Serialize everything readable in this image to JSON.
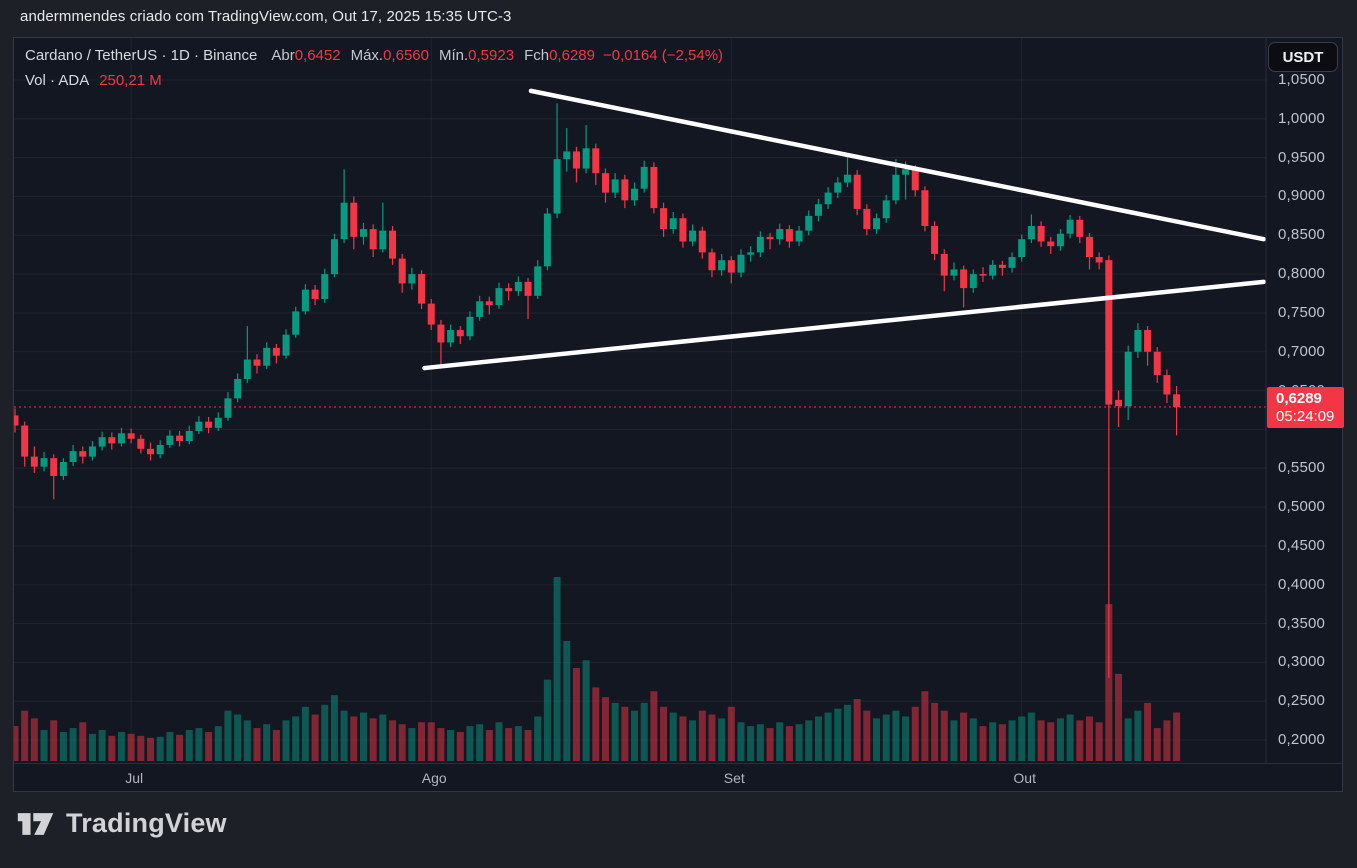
{
  "header": {
    "attribution": "andermmendes criado com TradingView.com, Out 17, 2025 15:35 UTC-3"
  },
  "legend": {
    "title": "Cardano / TetherUS · 1D · Binance",
    "open_label": "Abr",
    "open": "0,6452",
    "high_label": "Máx.",
    "high": "0,6560",
    "low_label": "Mín.",
    "low": "0,5923",
    "close_label": "Fch",
    "close": "0,6289",
    "change": "−0,0164 (−2,54%)",
    "volume_label": "Vol · ADA",
    "volume": "250,21 M"
  },
  "price_axis": {
    "currency_button": "USDT",
    "last_price": "0,6289",
    "countdown": "05:24:09"
  },
  "footer": {
    "brand": "TradingView"
  },
  "colors": {
    "up": "#089981",
    "down": "#f23645",
    "accent": "#f23645",
    "background": "#131722",
    "grid": "rgba(255,255,255,0.055)",
    "trendline": "#ffffff",
    "axis_text": "#bfc3ce"
  },
  "chart_data": {
    "type": "candlestick+volume",
    "title": "Cardano / TetherUS · 1D · Binance",
    "price_range_shown": [
      0.2,
      1.05
    ],
    "grid": true,
    "y_ticks": [
      {
        "label": "1,0500",
        "price": 1.05
      },
      {
        "label": "1,0000",
        "price": 1.0
      },
      {
        "label": "0,9500",
        "price": 0.95
      },
      {
        "label": "0,9000",
        "price": 0.9
      },
      {
        "label": "0,8500",
        "price": 0.85
      },
      {
        "label": "0,8000",
        "price": 0.8
      },
      {
        "label": "0,7500",
        "price": 0.75
      },
      {
        "label": "0,7000",
        "price": 0.7
      },
      {
        "label": "0,6500",
        "price": 0.65
      },
      {
        "label": null,
        "price": 0.6
      },
      {
        "label": "0,5500",
        "price": 0.55
      },
      {
        "label": "0,5000",
        "price": 0.5
      },
      {
        "label": "0,4500",
        "price": 0.45
      },
      {
        "label": "0,4000",
        "price": 0.4
      },
      {
        "label": "0,3500",
        "price": 0.35
      },
      {
        "label": "0,3000",
        "price": 0.3
      },
      {
        "label": "0,2500",
        "price": 0.25
      },
      {
        "label": "0,2000",
        "price": 0.2
      }
    ],
    "x_ticks": [
      {
        "label": "Jul",
        "index": 12
      },
      {
        "label": "Ago",
        "index": 43
      },
      {
        "label": "Set",
        "index": 74
      },
      {
        "label": "Out",
        "index": 104
      }
    ],
    "last_price": 0.6289,
    "volume_max_scale": 950,
    "trendlines": [
      {
        "name": "descending-resistance",
        "i1": 53.3,
        "p1": 1.036,
        "i2": 129.0,
        "p2": 0.845
      },
      {
        "name": "ascending-support",
        "i1": 42.3,
        "p1": 0.679,
        "i2": 129.0,
        "p2": 0.79
      }
    ],
    "candles_format": [
      "open",
      "high",
      "low",
      "close",
      "volume_M"
    ],
    "candles": [
      [
        0.618,
        0.627,
        0.596,
        0.605,
        180
      ],
      [
        0.605,
        0.61,
        0.552,
        0.565,
        260
      ],
      [
        0.565,
        0.578,
        0.544,
        0.552,
        220
      ],
      [
        0.552,
        0.571,
        0.546,
        0.563,
        160
      ],
      [
        0.563,
        0.568,
        0.51,
        0.54,
        210
      ],
      [
        0.54,
        0.563,
        0.535,
        0.558,
        150
      ],
      [
        0.558,
        0.58,
        0.553,
        0.572,
        170
      ],
      [
        0.572,
        0.578,
        0.556,
        0.565,
        200
      ],
      [
        0.565,
        0.585,
        0.56,
        0.578,
        140
      ],
      [
        0.578,
        0.597,
        0.573,
        0.59,
        160
      ],
      [
        0.59,
        0.596,
        0.574,
        0.582,
        130
      ],
      [
        0.582,
        0.602,
        0.578,
        0.595,
        150
      ],
      [
        0.595,
        0.601,
        0.582,
        0.588,
        140
      ],
      [
        0.588,
        0.593,
        0.569,
        0.575,
        130
      ],
      [
        0.575,
        0.583,
        0.56,
        0.568,
        120
      ],
      [
        0.568,
        0.586,
        0.563,
        0.58,
        125
      ],
      [
        0.58,
        0.599,
        0.576,
        0.592,
        150
      ],
      [
        0.592,
        0.598,
        0.578,
        0.585,
        135
      ],
      [
        0.585,
        0.605,
        0.581,
        0.598,
        160
      ],
      [
        0.598,
        0.617,
        0.594,
        0.61,
        170
      ],
      [
        0.61,
        0.616,
        0.595,
        0.602,
        150
      ],
      [
        0.602,
        0.622,
        0.598,
        0.615,
        180
      ],
      [
        0.615,
        0.648,
        0.611,
        0.64,
        260
      ],
      [
        0.64,
        0.672,
        0.635,
        0.665,
        240
      ],
      [
        0.665,
        0.733,
        0.66,
        0.69,
        210
      ],
      [
        0.69,
        0.697,
        0.672,
        0.682,
        170
      ],
      [
        0.682,
        0.712,
        0.678,
        0.705,
        190
      ],
      [
        0.705,
        0.71,
        0.685,
        0.695,
        160
      ],
      [
        0.695,
        0.729,
        0.691,
        0.722,
        210
      ],
      [
        0.722,
        0.758,
        0.718,
        0.752,
        230
      ],
      [
        0.752,
        0.787,
        0.748,
        0.78,
        280
      ],
      [
        0.78,
        0.786,
        0.76,
        0.768,
        240
      ],
      [
        0.768,
        0.807,
        0.763,
        0.8,
        290
      ],
      [
        0.8,
        0.852,
        0.796,
        0.845,
        340
      ],
      [
        0.845,
        0.935,
        0.84,
        0.892,
        260
      ],
      [
        0.892,
        0.9,
        0.832,
        0.848,
        230
      ],
      [
        0.848,
        0.866,
        0.838,
        0.858,
        250
      ],
      [
        0.858,
        0.864,
        0.822,
        0.832,
        220
      ],
      [
        0.832,
        0.892,
        0.828,
        0.856,
        240
      ],
      [
        0.856,
        0.862,
        0.812,
        0.82,
        210
      ],
      [
        0.82,
        0.826,
        0.776,
        0.788,
        190
      ],
      [
        0.788,
        0.808,
        0.78,
        0.8,
        170
      ],
      [
        0.8,
        0.805,
        0.755,
        0.762,
        200
      ],
      [
        0.762,
        0.768,
        0.728,
        0.735,
        200
      ],
      [
        0.735,
        0.741,
        0.683,
        0.712,
        170
      ],
      [
        0.712,
        0.735,
        0.706,
        0.728,
        160
      ],
      [
        0.728,
        0.733,
        0.71,
        0.72,
        150
      ],
      [
        0.72,
        0.752,
        0.715,
        0.745,
        180
      ],
      [
        0.745,
        0.772,
        0.74,
        0.765,
        190
      ],
      [
        0.765,
        0.771,
        0.748,
        0.76,
        160
      ],
      [
        0.76,
        0.789,
        0.755,
        0.782,
        200
      ],
      [
        0.782,
        0.788,
        0.766,
        0.778,
        170
      ],
      [
        0.778,
        0.797,
        0.772,
        0.79,
        180
      ],
      [
        0.79,
        0.795,
        0.742,
        0.772,
        160
      ],
      [
        0.772,
        0.818,
        0.768,
        0.81,
        230
      ],
      [
        0.81,
        0.885,
        0.805,
        0.878,
        420
      ],
      [
        0.878,
        1.02,
        0.872,
        0.948,
        950
      ],
      [
        0.948,
        0.988,
        0.932,
        0.958,
        620
      ],
      [
        0.958,
        0.964,
        0.918,
        0.936,
        480
      ],
      [
        0.936,
        0.992,
        0.93,
        0.962,
        520
      ],
      [
        0.962,
        0.968,
        0.915,
        0.93,
        380
      ],
      [
        0.93,
        0.936,
        0.892,
        0.905,
        330
      ],
      [
        0.905,
        0.93,
        0.898,
        0.922,
        300
      ],
      [
        0.922,
        0.928,
        0.885,
        0.895,
        280
      ],
      [
        0.895,
        0.918,
        0.888,
        0.91,
        260
      ],
      [
        0.91,
        0.946,
        0.905,
        0.938,
        300
      ],
      [
        0.938,
        0.944,
        0.878,
        0.885,
        360
      ],
      [
        0.885,
        0.892,
        0.848,
        0.858,
        280
      ],
      [
        0.858,
        0.88,
        0.852,
        0.872,
        250
      ],
      [
        0.872,
        0.878,
        0.834,
        0.842,
        230
      ],
      [
        0.842,
        0.864,
        0.836,
        0.856,
        210
      ],
      [
        0.856,
        0.861,
        0.82,
        0.828,
        260
      ],
      [
        0.828,
        0.833,
        0.796,
        0.805,
        240
      ],
      [
        0.805,
        0.826,
        0.798,
        0.818,
        220
      ],
      [
        0.818,
        0.823,
        0.788,
        0.802,
        280
      ],
      [
        0.802,
        0.832,
        0.796,
        0.825,
        200
      ],
      [
        0.825,
        0.836,
        0.816,
        0.828,
        180
      ],
      [
        0.828,
        0.855,
        0.822,
        0.848,
        190
      ],
      [
        0.848,
        0.853,
        0.832,
        0.845,
        170
      ],
      [
        0.845,
        0.865,
        0.838,
        0.858,
        200
      ],
      [
        0.858,
        0.863,
        0.834,
        0.842,
        180
      ],
      [
        0.842,
        0.862,
        0.836,
        0.856,
        190
      ],
      [
        0.856,
        0.882,
        0.85,
        0.875,
        210
      ],
      [
        0.875,
        0.897,
        0.868,
        0.89,
        230
      ],
      [
        0.89,
        0.912,
        0.884,
        0.905,
        250
      ],
      [
        0.905,
        0.925,
        0.898,
        0.918,
        270
      ],
      [
        0.918,
        0.954,
        0.912,
        0.928,
        290
      ],
      [
        0.928,
        0.934,
        0.876,
        0.884,
        320
      ],
      [
        0.884,
        0.89,
        0.85,
        0.858,
        260
      ],
      [
        0.858,
        0.878,
        0.852,
        0.872,
        220
      ],
      [
        0.872,
        0.902,
        0.866,
        0.895,
        240
      ],
      [
        0.895,
        0.948,
        0.89,
        0.928,
        260
      ],
      [
        0.928,
        0.945,
        0.896,
        0.935,
        230
      ],
      [
        0.935,
        0.94,
        0.9,
        0.908,
        280
      ],
      [
        0.908,
        0.913,
        0.855,
        0.862,
        360
      ],
      [
        0.862,
        0.868,
        0.818,
        0.826,
        300
      ],
      [
        0.826,
        0.832,
        0.778,
        0.798,
        260
      ],
      [
        0.798,
        0.815,
        0.792,
        0.806,
        210
      ],
      [
        0.806,
        0.811,
        0.757,
        0.782,
        250
      ],
      [
        0.782,
        0.806,
        0.776,
        0.8,
        220
      ],
      [
        0.8,
        0.809,
        0.79,
        0.798,
        180
      ],
      [
        0.798,
        0.818,
        0.793,
        0.812,
        200
      ],
      [
        0.812,
        0.817,
        0.798,
        0.808,
        190
      ],
      [
        0.808,
        0.828,
        0.802,
        0.822,
        210
      ],
      [
        0.822,
        0.851,
        0.816,
        0.845,
        230
      ],
      [
        0.845,
        0.877,
        0.84,
        0.862,
        250
      ],
      [
        0.862,
        0.868,
        0.835,
        0.842,
        210
      ],
      [
        0.842,
        0.848,
        0.826,
        0.836,
        200
      ],
      [
        0.836,
        0.858,
        0.83,
        0.852,
        220
      ],
      [
        0.852,
        0.876,
        0.846,
        0.87,
        240
      ],
      [
        0.87,
        0.875,
        0.84,
        0.848,
        210
      ],
      [
        0.848,
        0.853,
        0.806,
        0.822,
        230
      ],
      [
        0.822,
        0.828,
        0.806,
        0.815,
        200
      ],
      [
        0.818,
        0.824,
        0.28,
        0.632,
        810
      ],
      [
        0.638,
        0.65,
        0.603,
        0.63,
        450
      ],
      [
        0.63,
        0.708,
        0.612,
        0.7,
        220
      ],
      [
        0.7,
        0.737,
        0.692,
        0.728,
        260
      ],
      [
        0.728,
        0.733,
        0.682,
        0.7,
        300
      ],
      [
        0.7,
        0.706,
        0.66,
        0.67,
        170
      ],
      [
        0.67,
        0.677,
        0.634,
        0.645,
        210
      ],
      [
        0.6452,
        0.656,
        0.5923,
        0.6289,
        250.21
      ]
    ]
  }
}
